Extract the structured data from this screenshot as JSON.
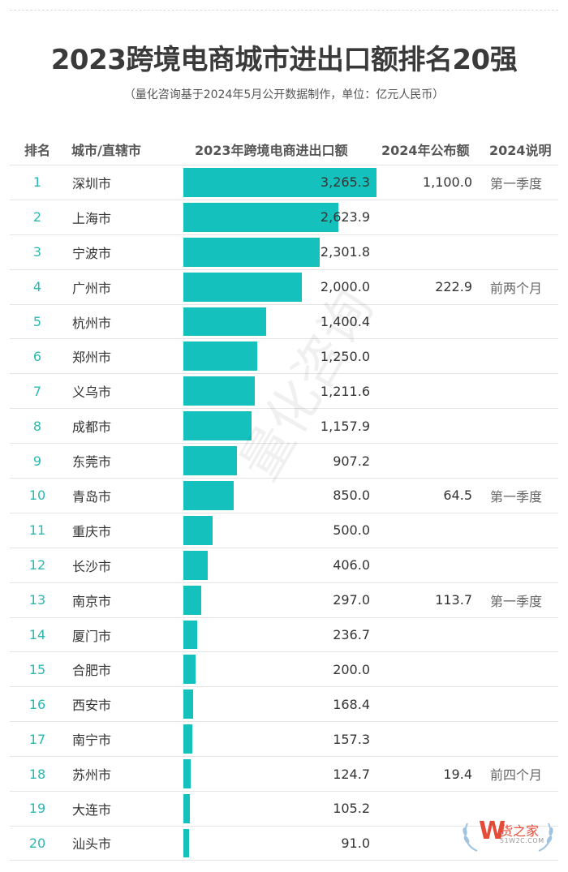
{
  "title": "2023跨境电商城市进出口额排名20强",
  "subtitle": "（量化咨询基于2024年5月公开数据制作，单位：亿元人民币）",
  "headers": {
    "rank": "排名",
    "city": "城市/直辖市",
    "value": "2023年跨境电商进出口额",
    "published": "2024年公布额",
    "note": "2024说明"
  },
  "watermark": "量化咨询",
  "logo": {
    "letter": "W",
    "name": "货之家",
    "url": "51W2C.COM"
  },
  "colors": {
    "bar": "#14c1bd",
    "rank": "#2bb8b1",
    "logo": "#e44c3a"
  },
  "chart_data": {
    "type": "table",
    "title": "2023跨境电商城市进出口额排名20强",
    "unit": "亿元人民币",
    "max_value": 3265.3,
    "rows": [
      {
        "rank": "1",
        "city": "深圳市",
        "value": 3265.3,
        "value_text": "3,265.3",
        "published": "1,100.0",
        "note": "第一季度"
      },
      {
        "rank": "2",
        "city": "上海市",
        "value": 2623.9,
        "value_text": "2,623.9",
        "published": "",
        "note": ""
      },
      {
        "rank": "3",
        "city": "宁波市",
        "value": 2301.8,
        "value_text": "2,301.8",
        "published": "",
        "note": ""
      },
      {
        "rank": "4",
        "city": "广州市",
        "value": 2000.0,
        "value_text": "2,000.0",
        "published": "222.9",
        "note": "前两个月"
      },
      {
        "rank": "5",
        "city": "杭州市",
        "value": 1400.4,
        "value_text": "1,400.4",
        "published": "",
        "note": ""
      },
      {
        "rank": "6",
        "city": "郑州市",
        "value": 1250.0,
        "value_text": "1,250.0",
        "published": "",
        "note": ""
      },
      {
        "rank": "7",
        "city": "义乌市",
        "value": 1211.6,
        "value_text": "1,211.6",
        "published": "",
        "note": ""
      },
      {
        "rank": "8",
        "city": "成都市",
        "value": 1157.9,
        "value_text": "1,157.9",
        "published": "",
        "note": ""
      },
      {
        "rank": "9",
        "city": "东莞市",
        "value": 907.2,
        "value_text": "907.2",
        "published": "",
        "note": ""
      },
      {
        "rank": "10",
        "city": "青岛市",
        "value": 850.0,
        "value_text": "850.0",
        "published": "64.5",
        "note": "第一季度"
      },
      {
        "rank": "11",
        "city": "重庆市",
        "value": 500.0,
        "value_text": "500.0",
        "published": "",
        "note": ""
      },
      {
        "rank": "12",
        "city": "长沙市",
        "value": 406.0,
        "value_text": "406.0",
        "published": "",
        "note": ""
      },
      {
        "rank": "13",
        "city": "南京市",
        "value": 297.0,
        "value_text": "297.0",
        "published": "113.7",
        "note": "第一季度"
      },
      {
        "rank": "14",
        "city": "厦门市",
        "value": 236.7,
        "value_text": "236.7",
        "published": "",
        "note": ""
      },
      {
        "rank": "15",
        "city": "合肥市",
        "value": 200.0,
        "value_text": "200.0",
        "published": "",
        "note": ""
      },
      {
        "rank": "16",
        "city": "西安市",
        "value": 168.4,
        "value_text": "168.4",
        "published": "",
        "note": ""
      },
      {
        "rank": "17",
        "city": "南宁市",
        "value": 157.3,
        "value_text": "157.3",
        "published": "",
        "note": ""
      },
      {
        "rank": "18",
        "city": "苏州市",
        "value": 124.7,
        "value_text": "124.7",
        "published": "19.4",
        "note": "前四个月"
      },
      {
        "rank": "19",
        "city": "大连市",
        "value": 105.2,
        "value_text": "105.2",
        "published": "",
        "note": ""
      },
      {
        "rank": "20",
        "city": "汕头市",
        "value": 91.0,
        "value_text": "91.0",
        "published": "",
        "note": ""
      }
    ]
  }
}
